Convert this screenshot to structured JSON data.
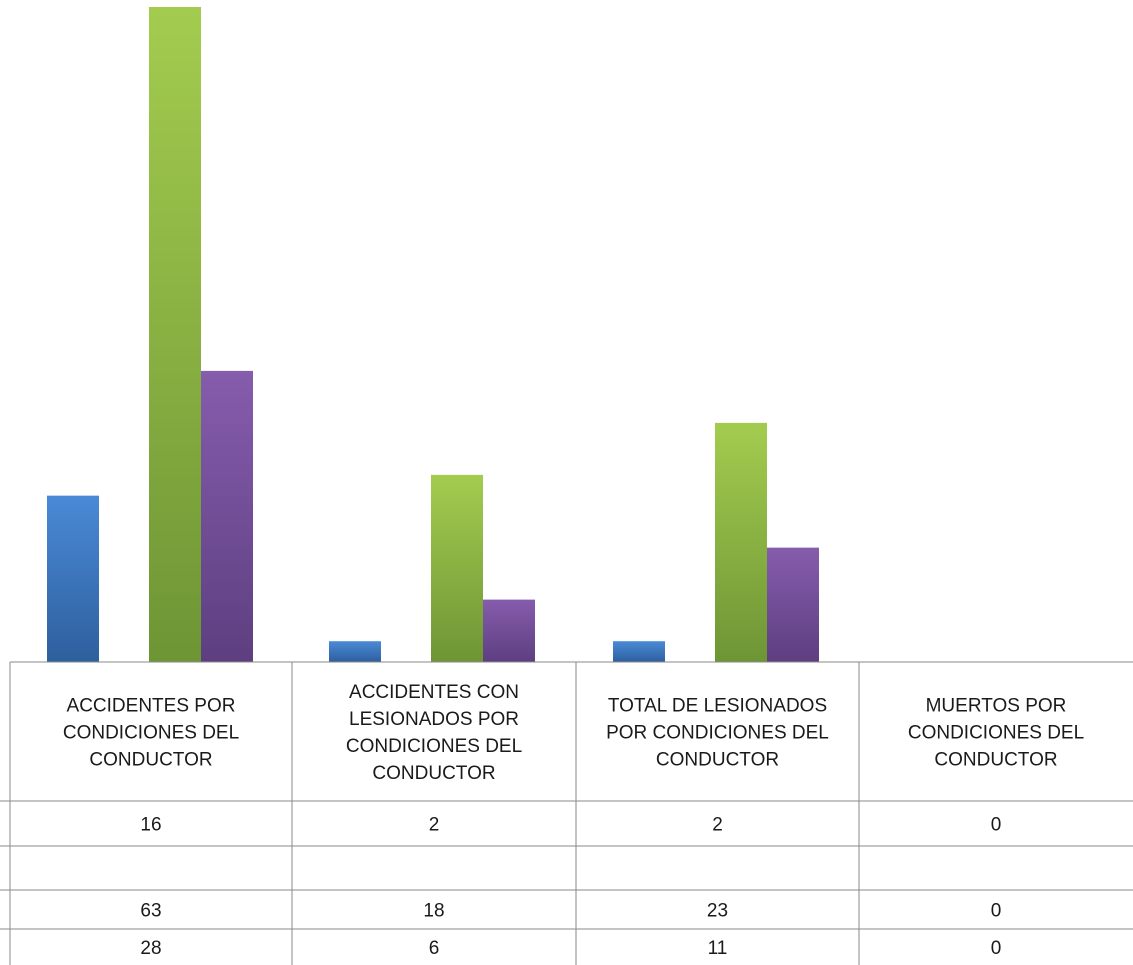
{
  "chart_data": {
    "type": "bar",
    "title": "",
    "xlabel": "",
    "ylabel": "",
    "ylim": [
      0,
      63
    ],
    "grid": false,
    "legend": "none",
    "categories": [
      [
        "ACCIDENTES POR",
        "CONDICIONES DEL",
        "CONDUCTOR"
      ],
      [
        "ACCIDENTES CON",
        "LESIONADOS POR",
        "CONDICIONES DEL",
        "CONDUCTOR"
      ],
      [
        "TOTAL DE LESIONADOS",
        "POR CONDICIONES DEL",
        "CONDUCTOR"
      ],
      [
        "MUERTOS  POR",
        "CONDICIONES DEL",
        "CONDUCTOR"
      ]
    ],
    "series": [
      {
        "values": [
          16,
          2,
          2,
          0
        ],
        "color": "#3f7cc6"
      },
      {
        "values": [
          null,
          null,
          null,
          null
        ],
        "color": "#4f81bd"
      },
      {
        "values": [
          63,
          18,
          23,
          0
        ],
        "color": "#92bd44"
      },
      {
        "values": [
          28,
          6,
          11,
          0
        ],
        "color": "#7b539f"
      }
    ]
  }
}
